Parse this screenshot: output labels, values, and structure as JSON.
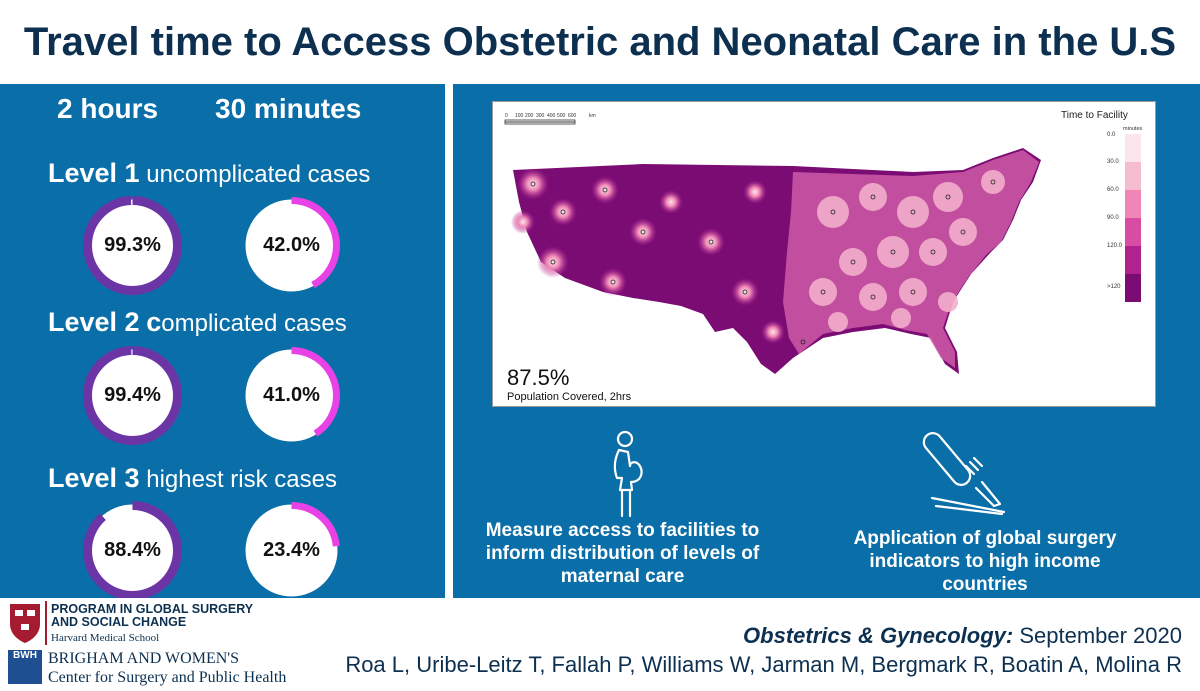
{
  "title": "Travel time to Access Obstetric and Neonatal Care in the U.S",
  "columns": {
    "col1": "2 hours",
    "col2": "30 minutes"
  },
  "levels": [
    {
      "name": "Level 1",
      "desc": "uncomplicated cases",
      "two_hours": "99.3%",
      "thirty_min": "42.0%",
      "two_hours_value": 0.993,
      "thirty_min_value": 0.42
    },
    {
      "name": "Level 2",
      "desc_c": "c",
      "desc": "omplicated cases",
      "two_hours": "99.4%",
      "thirty_min": "41.0%",
      "two_hours_value": 0.994,
      "thirty_min_value": 0.41
    },
    {
      "name": "Level 3",
      "desc": "highest risk cases",
      "two_hours": "88.4%",
      "thirty_min": "23.4%",
      "two_hours_value": 0.884,
      "thirty_min_value": 0.234
    }
  ],
  "map": {
    "scale_ticks": [
      "0",
      "100",
      "200",
      "300",
      "400",
      "500",
      "600"
    ],
    "scale_unit": "km",
    "legend_title": "Time to Facility",
    "legend_unit": "minutes",
    "legend_labels": [
      "0.0",
      "30.0",
      "60.0",
      "90.0",
      "120.0",
      ">120"
    ],
    "legend_colors": [
      "#fbe6ec",
      "#f6bdd0",
      "#ef86b5",
      "#d84da3",
      "#b0238f",
      "#7a0c74"
    ],
    "coverage_value": "87.5%",
    "coverage_label": "Population Covered, 2hrs"
  },
  "captions": {
    "left": "Measure access to facilities to inform distribution of levels of maternal care",
    "right": "Application of global surgery indicators to high income countries"
  },
  "icons": {
    "left": "pregnant-woman-icon",
    "right": "scalpel-icon"
  },
  "colors": {
    "blue": "#0a6ea8",
    "title": "#0d3050",
    "ring_two_hours": "#6b35a6",
    "ring_thirty_min": "#e842e6"
  },
  "footer": {
    "program_line1": "PROGRAM IN GLOBAL SURGERY",
    "program_line2": "AND SOCIAL CHANGE",
    "program_line3": "Harvard Medical School",
    "bwh_badge": "BWH",
    "bwh_line1": "BRIGHAM AND WOMEN'S",
    "bwh_line2": "Center for Surgery and Public Health",
    "journal_name": "Obstetrics & Gynecology:",
    "journal_date": " September 2020",
    "authors": "Roa L, Uribe-Leitz T, Fallah P, Williams W, Jarman M, Bergmark R, Boatin A, Molina R"
  }
}
